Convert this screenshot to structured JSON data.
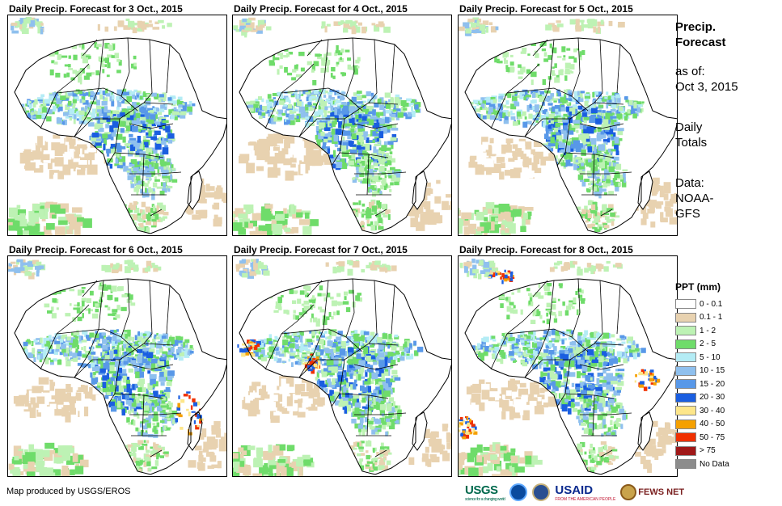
{
  "panels": [
    {
      "title": "Daily Precip. Forecast for 3 Oct., 2015"
    },
    {
      "title": "Daily Precip. Forecast for 4 Oct., 2015"
    },
    {
      "title": "Daily Precip. Forecast for 5 Oct., 2015"
    },
    {
      "title": "Daily Precip. Forecast for 6 Oct., 2015"
    },
    {
      "title": "Daily Precip. Forecast for 7 Oct., 2015"
    },
    {
      "title": "Daily Precip. Forecast for 8 Oct., 2015"
    }
  ],
  "side": {
    "title_line1": "Precip.",
    "title_line2": "Forecast",
    "asof_label": "as of:",
    "asof_date": "Oct 3, 2015",
    "totals_line1": "Daily",
    "totals_line2": "Totals",
    "data_line1": "Data:",
    "data_line2": "NOAA-",
    "data_line3": "GFS"
  },
  "legend": {
    "title": "PPT (mm)",
    "items": [
      {
        "label": "0 - 0.1",
        "color": "#ffffff"
      },
      {
        "label": "0.1 - 1",
        "color": "#e8d2b0"
      },
      {
        "label": "1 - 2",
        "color": "#bdf2b4"
      },
      {
        "label": "2 - 5",
        "color": "#6fdc6a"
      },
      {
        "label": "5 - 10",
        "color": "#b4ecf5"
      },
      {
        "label": "10 - 15",
        "color": "#8fc0ee"
      },
      {
        "label": "15 - 20",
        "color": "#5898e8"
      },
      {
        "label": "20 - 30",
        "color": "#1a5ee0"
      },
      {
        "label": "30 - 40",
        "color": "#fde68a"
      },
      {
        "label": "40 - 50",
        "color": "#f5a000"
      },
      {
        "label": "50 - 75",
        "color": "#f03000"
      },
      {
        "label": "> 75",
        "color": "#a01818"
      },
      {
        "label": "No Data",
        "color": "#8c8c8c"
      }
    ]
  },
  "footer": {
    "credit": "Map produced by USGS/EROS",
    "logos": {
      "usgs": "USGS",
      "usgs_tagline": "science for a changing world",
      "usaid": "USAID",
      "usaid_tagline": "FROM THE AMERICAN PEOPLE",
      "fews": "FEWS NET"
    }
  }
}
